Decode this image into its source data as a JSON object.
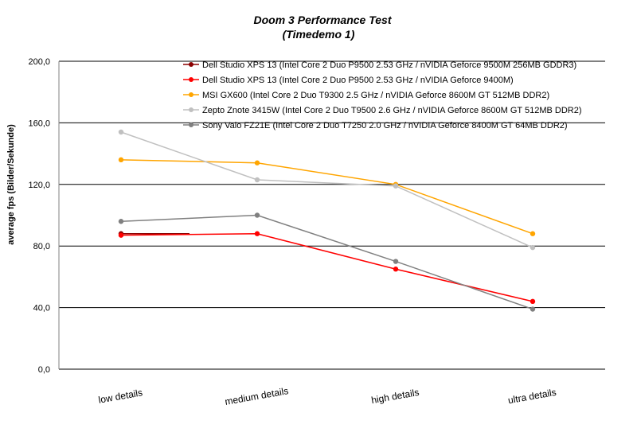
{
  "chart_data": {
    "type": "line",
    "title": "Doom 3 Performance Test",
    "subtitle": "(Timedemo 1)",
    "ylabel": "average fps (Bilder/Sekunde)",
    "xlabel": "",
    "ylim": [
      0,
      200
    ],
    "yticks": [
      0,
      40,
      80,
      120,
      160,
      200
    ],
    "ytick_labels": [
      "0,0",
      "40,0",
      "80,0",
      "120,0",
      "160,0",
      "200,0"
    ],
    "grid": true,
    "legend_position": "top-right",
    "categories": [
      "low details",
      "medium details",
      "high details",
      "ultra details"
    ],
    "series": [
      {
        "name": "Dell Studio XPS 13 (Intel Core 2 Duo P9500 2.53 GHz / nVIDIA Geforce 9500M 256MB GDDR3)",
        "color": "#8b0000",
        "values": [
          88,
          null,
          null,
          null
        ]
      },
      {
        "name": "Dell Studio XPS 13 (Intel Core 2 Duo P9500 2.53 GHz / nVIDIA Geforce 9400M)",
        "color": "#ff0000",
        "values": [
          87,
          88,
          65,
          44
        ]
      },
      {
        "name": "MSI GX600 (Intel Core 2 Duo T9300 2.5 GHz / nVIDIA Geforce 8600M GT 512MB DDR2)",
        "color": "#ffa500",
        "values": [
          136,
          134,
          120,
          88
        ]
      },
      {
        "name": " Zepto Znote 3415W (Intel Core 2 Duo T9500 2.6 GHz / nVIDIA Geforce 8600M GT 512MB DDR2)",
        "color": "#c0c0c0",
        "values": [
          154,
          123,
          119,
          79
        ]
      },
      {
        "name": "Sony Vaio FZ21E (Intel Core 2 Duo T7250 2.0 GHz / nVIDIA Geforce 8400M GT 64MB DDR2)",
        "color": "#808080",
        "values": [
          96,
          100,
          70,
          39
        ]
      }
    ]
  }
}
